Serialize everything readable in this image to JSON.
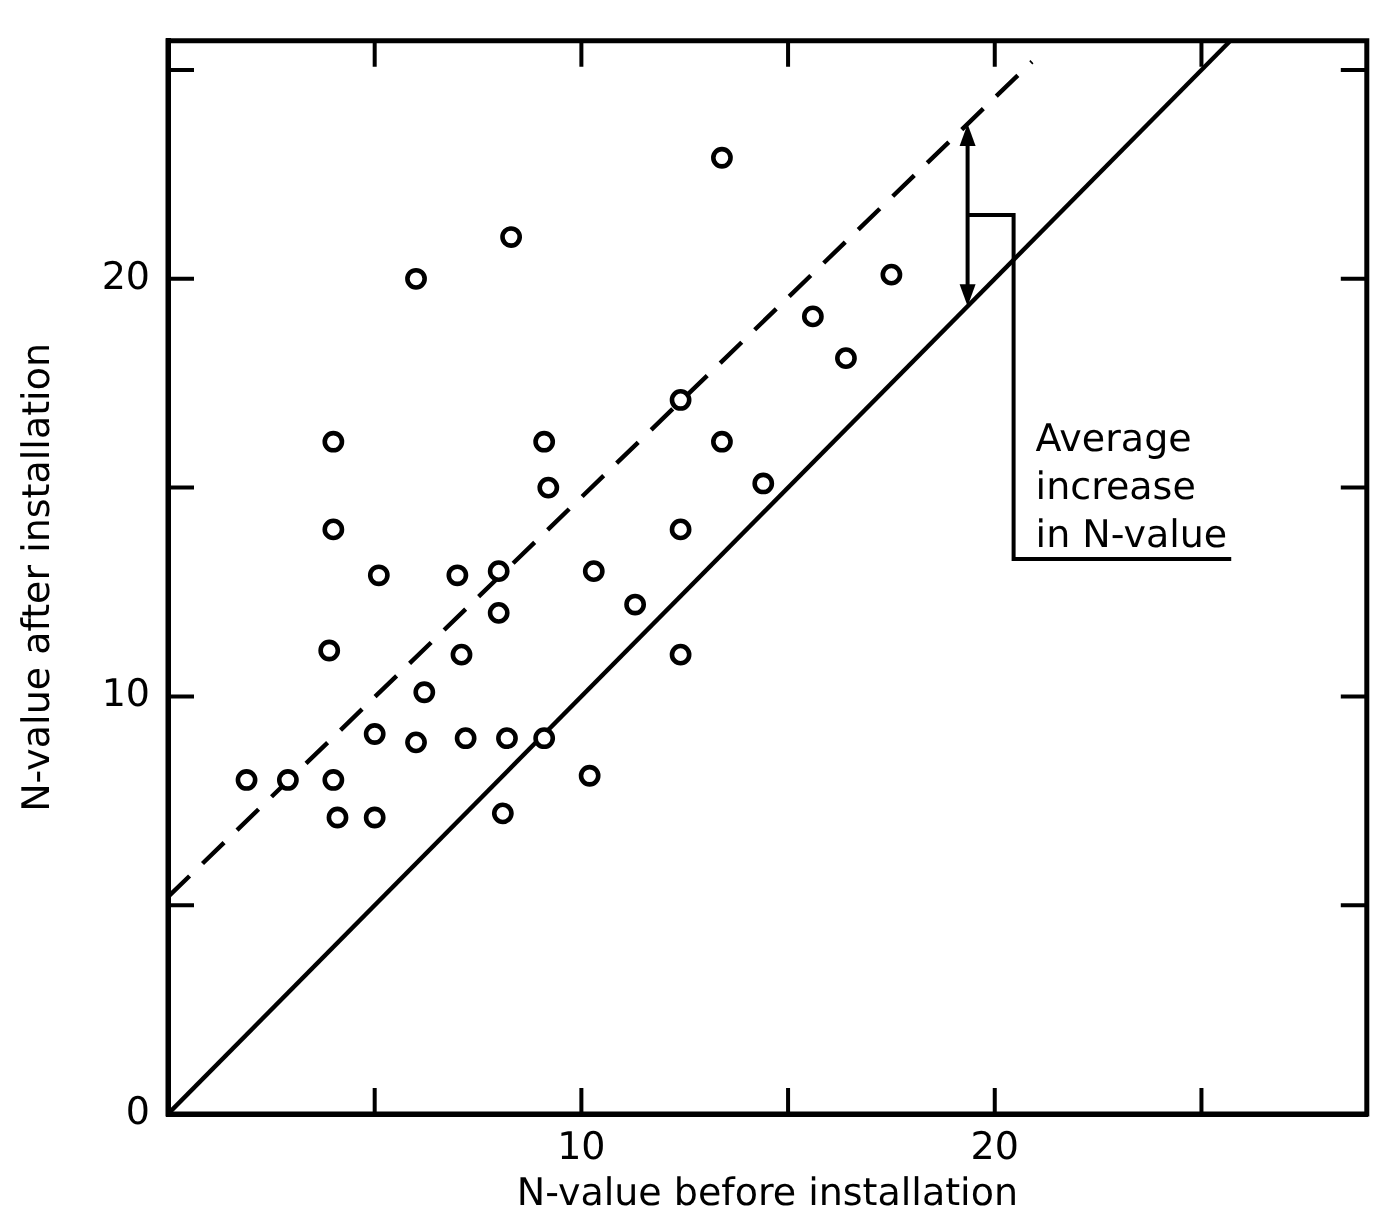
{
  "chart_data": {
    "type": "scatter",
    "xlabel": "N-value before installation",
    "ylabel": "N-value after installation",
    "xlim": [
      0,
      29
    ],
    "ylim": [
      0,
      25.7
    ],
    "xticks": [
      {
        "value": 5,
        "label": null
      },
      10,
      {
        "value": 15,
        "label": null
      },
      20,
      {
        "value": 25,
        "label": null
      }
    ],
    "yticks": [
      0,
      {
        "value": 5,
        "label": null
      },
      10,
      {
        "value": 15,
        "label": null
      },
      20,
      {
        "value": 25,
        "label": null
      }
    ],
    "series": [
      {
        "color": "#000000",
        "marker": "circle",
        "x": [
          8.3,
          6.0,
          13.4,
          4.0,
          9.1,
          9.2,
          12.4,
          13.4,
          14.4,
          4.0,
          12.4,
          5.1,
          7.0,
          8.0,
          10.3,
          8.0,
          11.3,
          17.5,
          15.6,
          16.4,
          3.9,
          7.1,
          12.4,
          6.2,
          5.0,
          6.0,
          7.2,
          8.2,
          9.1,
          1.9,
          2.9,
          4.0,
          4.1,
          5.0,
          8.1,
          10.2
        ],
        "values": [
          21.0,
          20.0,
          22.9,
          16.1,
          16.1,
          15.0,
          17.1,
          16.1,
          15.1,
          14.0,
          14.0,
          12.9,
          12.9,
          13.0,
          13.0,
          12.0,
          12.2,
          20.1,
          19.1,
          18.1,
          11.1,
          11.0,
          11.0,
          10.1,
          9.1,
          8.9,
          9.0,
          9.0,
          9.0,
          8.0,
          8.0,
          8.0,
          7.1,
          7.1,
          7.2,
          8.1
        ]
      },
      {
        "type": "line",
        "color": "#000000",
        "marker": "none",
        "line_style": "solid",
        "x": [
          0,
          25.7
        ],
        "values": [
          0,
          25.7
        ]
      },
      {
        "type": "line",
        "color": "#000000",
        "marker": "none",
        "line_style": "dashed",
        "x": [
          0,
          20.9
        ],
        "values": [
          5.2,
          25.2
        ]
      }
    ],
    "annotations": [
      "Average increase in N-value"
    ]
  }
}
